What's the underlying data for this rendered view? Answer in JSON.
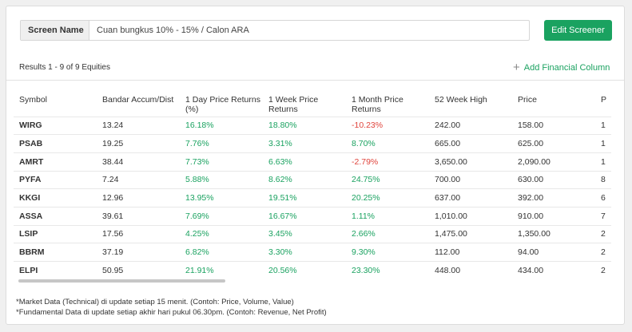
{
  "screen": {
    "label": "Screen Name",
    "value": "Cuan bungkus 10% - 15% / Calon ARA"
  },
  "edit_button": "Edit Screener",
  "results_text": "Results 1 - 9 of 9 Equities",
  "add_column": "Add Financial Column",
  "columns": [
    "Symbol",
    "Bandar Accum/Dist",
    "1 Day Price Returns (%)",
    "1 Week Price Returns",
    "1 Month Price Returns",
    "52 Week High",
    "Price",
    "P"
  ],
  "rows": [
    {
      "symbol": "WIRG",
      "bandar": "13.24",
      "d1": "16.18%",
      "w1": "18.80%",
      "m1": "-10.23%",
      "high52": "242.00",
      "price": "158.00",
      "p": "1"
    },
    {
      "symbol": "PSAB",
      "bandar": "19.25",
      "d1": "7.76%",
      "w1": "3.31%",
      "m1": "8.70%",
      "high52": "665.00",
      "price": "625.00",
      "p": "1"
    },
    {
      "symbol": "AMRT",
      "bandar": "38.44",
      "d1": "7.73%",
      "w1": "6.63%",
      "m1": "-2.79%",
      "high52": "3,650.00",
      "price": "2,090.00",
      "p": "1"
    },
    {
      "symbol": "PYFA",
      "bandar": "7.24",
      "d1": "5.88%",
      "w1": "8.62%",
      "m1": "24.75%",
      "high52": "700.00",
      "price": "630.00",
      "p": "8"
    },
    {
      "symbol": "KKGI",
      "bandar": "12.96",
      "d1": "13.95%",
      "w1": "19.51%",
      "m1": "20.25%",
      "high52": "637.00",
      "price": "392.00",
      "p": "6"
    },
    {
      "symbol": "ASSA",
      "bandar": "39.61",
      "d1": "7.69%",
      "w1": "16.67%",
      "m1": "1.11%",
      "high52": "1,010.00",
      "price": "910.00",
      "p": "7"
    },
    {
      "symbol": "LSIP",
      "bandar": "17.56",
      "d1": "4.25%",
      "w1": "3.45%",
      "m1": "2.66%",
      "high52": "1,475.00",
      "price": "1,350.00",
      "p": "2"
    },
    {
      "symbol": "BBRM",
      "bandar": "37.19",
      "d1": "6.82%",
      "w1": "3.30%",
      "m1": "9.30%",
      "high52": "112.00",
      "price": "94.00",
      "p": "2"
    },
    {
      "symbol": "ELPI",
      "bandar": "50.95",
      "d1": "21.91%",
      "w1": "20.56%",
      "m1": "23.30%",
      "high52": "448.00",
      "price": "434.00",
      "p": "2"
    }
  ],
  "notes": [
    "*Market Data (Technical) di update setiap 15 menit. (Contoh: Price, Volume, Value)",
    "*Fundamental Data di update setiap akhir hari pukul 06.30pm. (Contoh: Revenue, Net Profit)"
  ],
  "colors": {
    "accent": "#1aa260",
    "negative": "#e0443c"
  }
}
